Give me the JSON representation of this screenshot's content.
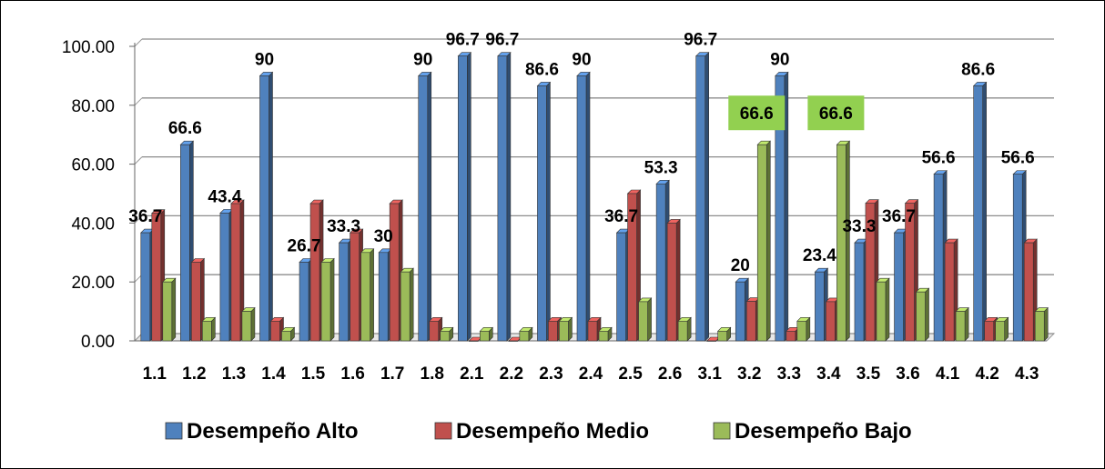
{
  "chart_data": {
    "type": "bar",
    "categories": [
      "1.1",
      "1.2",
      "1.3",
      "1.4",
      "1.5",
      "1.6",
      "1.7",
      "1.8",
      "2.1",
      "2.2",
      "2.3",
      "2.4",
      "2.5",
      "2.6",
      "3.1",
      "3.2",
      "3.3",
      "3.4",
      "3.5",
      "3.6",
      "4.1",
      "4.2",
      "4.3"
    ],
    "series": [
      {
        "name": "Desempeño Alto",
        "color": "#4F81BD",
        "values": [
          36.7,
          66.6,
          43.4,
          90,
          26.7,
          33.3,
          30,
          90,
          96.7,
          96.7,
          86.6,
          90,
          36.7,
          53.3,
          96.7,
          20,
          90,
          23.4,
          33.3,
          36.7,
          56.6,
          86.6,
          56.6
        ]
      },
      {
        "name": "Desempeño Medio",
        "color": "#C0504D",
        "values": [
          43.3,
          26.7,
          46.6,
          6.7,
          46.6,
          36.7,
          46.6,
          6.7,
          0,
          0,
          6.7,
          6.7,
          50,
          40,
          0,
          13.4,
          3.3,
          13.3,
          46.7,
          46.7,
          33.3,
          6.7,
          33.3
        ]
      },
      {
        "name": "Desempeño Bajo",
        "color": "#9BBB59",
        "values": [
          20,
          6.7,
          10,
          3.3,
          26.7,
          30,
          23.4,
          3.3,
          3.3,
          3.3,
          6.7,
          3.3,
          13.3,
          6.7,
          3.3,
          66.6,
          6.7,
          66.6,
          20,
          16.6,
          10,
          6.7,
          10
        ]
      }
    ],
    "data_labels": {
      "Desempeño Alto": [
        "36.7",
        "66.6",
        "43.4",
        "90",
        "26.7",
        "33.3",
        "30",
        "90",
        "96.7",
        "96.7",
        "86.6",
        "90",
        "36.7",
        "53.3",
        "96.7",
        "20",
        "90",
        "23.4",
        "33.3",
        "36.7",
        "56.6",
        "86.6",
        "56.6"
      ],
      "Desempeño Bajo_highlighted": [
        {
          "category": "3.2",
          "text": "66.6"
        },
        {
          "category": "3.4",
          "text": "66.6"
        }
      ]
    },
    "y_tick_labels": [
      "0.00",
      "20.00",
      "40.00",
      "60.00",
      "80.00",
      "100.00"
    ],
    "ylim": [
      0,
      100
    ],
    "grid": true,
    "legend_position": "bottom",
    "highlight_label_color": "#92D050"
  }
}
